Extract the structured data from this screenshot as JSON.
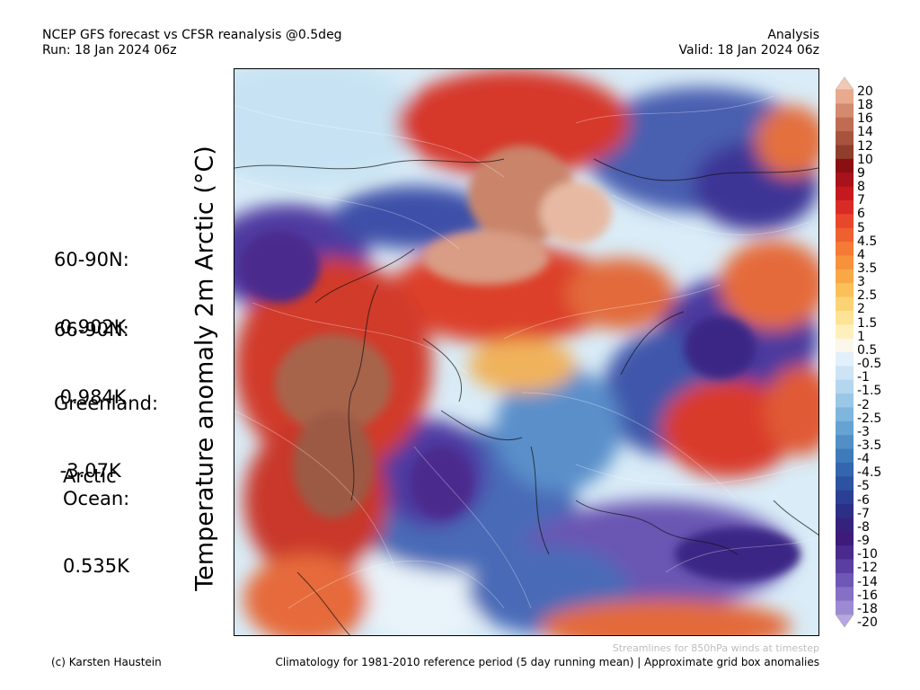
{
  "header": {
    "left_line1": "NCEP GFS forecast vs CFSR reanalysis @0.5deg",
    "left_line2": "Run: 18 Jan 2024 06z",
    "right_line1": "Analysis",
    "right_line2": "Valid: 18 Jan 2024 06z"
  },
  "vertical_label": "Temperature anomaly 2m Arctic (°C)",
  "stats": [
    {
      "label": "60-90N:",
      "value": " 0.902K"
    },
    {
      "label": "66-90N:",
      "value": " 0.984K"
    },
    {
      "label": "Greenland:",
      "value": " -3.07K"
    },
    {
      "label": "Arctic\nOcean:",
      "value": "0.535K"
    }
  ],
  "colorbar": {
    "labels": [
      "20",
      "18",
      "16",
      "14",
      "12",
      "10",
      "9",
      "8",
      "7",
      "6",
      "5",
      "4.5",
      "4",
      "3.5",
      "3",
      "2.5",
      "2",
      "1.5",
      "1",
      "0.5",
      "-0.5",
      "-1",
      "-1.5",
      "-2",
      "-2.5",
      "-3",
      "-3.5",
      "-4",
      "-4.5",
      "-5",
      "-6",
      "-7",
      "-8",
      "-9",
      "-10",
      "-12",
      "-14",
      "-16",
      "-18",
      "-20"
    ],
    "colors": [
      "#f3c9b3",
      "#e7aa8f",
      "#d48a6e",
      "#bf6c52",
      "#a8533d",
      "#8f3e2d",
      "#8a0f12",
      "#a8121a",
      "#c4191f",
      "#d92b26",
      "#e8472c",
      "#ef6030",
      "#f47a35",
      "#f7923c",
      "#f9a846",
      "#fbc05a",
      "#fcd374",
      "#fde395",
      "#fef0bb",
      "#fbf7ea",
      "#e3f0fa",
      "#cde4f5",
      "#b4d6ee",
      "#9ac7e6",
      "#7fb6dd",
      "#66a3d2",
      "#518fc6",
      "#3f7aba",
      "#3366ad",
      "#2c52a0",
      "#2b3f94",
      "#2d2f87",
      "#35227c",
      "#3e1a7a",
      "#4a2a8c",
      "#5a3ea1",
      "#6e57b5",
      "#8570c6",
      "#9d8ad4",
      "#b6a6e1"
    ]
  },
  "footer": {
    "left": "(c) Karsten Haustein",
    "right": "Climatology for 1981-2010 reference period (5 day running mean) | Approximate grid box anomalies",
    "streamlines": "Streamlines for 850hPa winds at timestep"
  }
}
